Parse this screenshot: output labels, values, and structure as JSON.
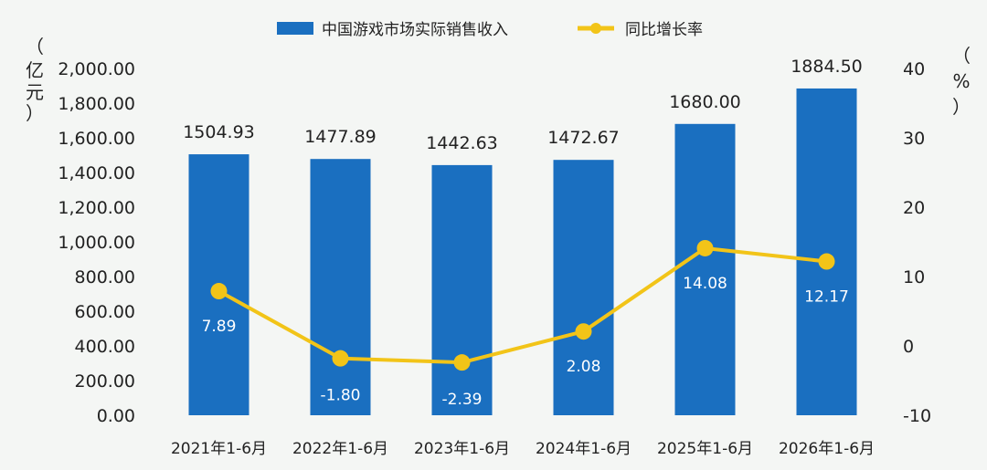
{
  "chart_data": {
    "type": "bar",
    "categories": [
      "2021年1-6月",
      "2022年1-6月",
      "2023年1-6月",
      "2024年1-6月",
      "2025年1-6月",
      "2026年1-6月"
    ],
    "series": [
      {
        "name": "中国游戏市场实际销售收入",
        "type": "bar",
        "axis": "left",
        "color": "#1a6fc0",
        "values": [
          1504.93,
          1477.89,
          1442.63,
          1472.67,
          1680.0,
          1884.5
        ],
        "labels": [
          "1504.93",
          "1477.89",
          "1442.63",
          "1472.67",
          "1680.00",
          "1884.50"
        ]
      },
      {
        "name": "同比增长率",
        "type": "line",
        "axis": "right",
        "color": "#f2c418",
        "values": [
          7.89,
          -1.8,
          -2.39,
          2.08,
          14.08,
          12.17
        ],
        "labels": [
          "7.89",
          "-1.80",
          "-2.39",
          "2.08",
          "14.08",
          "12.17"
        ]
      }
    ],
    "y_left": {
      "unit": [
        "（",
        "亿",
        "元",
        "）"
      ],
      "range": [
        0,
        2000
      ],
      "ticks": [
        0,
        200,
        400,
        600,
        800,
        1000,
        1200,
        1400,
        1600,
        1800,
        2000
      ],
      "tick_labels": [
        "0.00",
        "200.00",
        "400.00",
        "600.00",
        "800.00",
        "1,000.00",
        "1,200.00",
        "1,400.00",
        "1,600.00",
        "1,800.00",
        "2,000.00"
      ]
    },
    "y_right": {
      "unit": [
        "（",
        "%",
        "）"
      ],
      "range": [
        -10,
        40
      ],
      "ticks": [
        -10,
        0,
        10,
        20,
        30,
        40
      ],
      "tick_labels": [
        "-10",
        "0",
        "10",
        "20",
        "30",
        "40"
      ]
    },
    "legend_position": "top",
    "grid": false
  }
}
